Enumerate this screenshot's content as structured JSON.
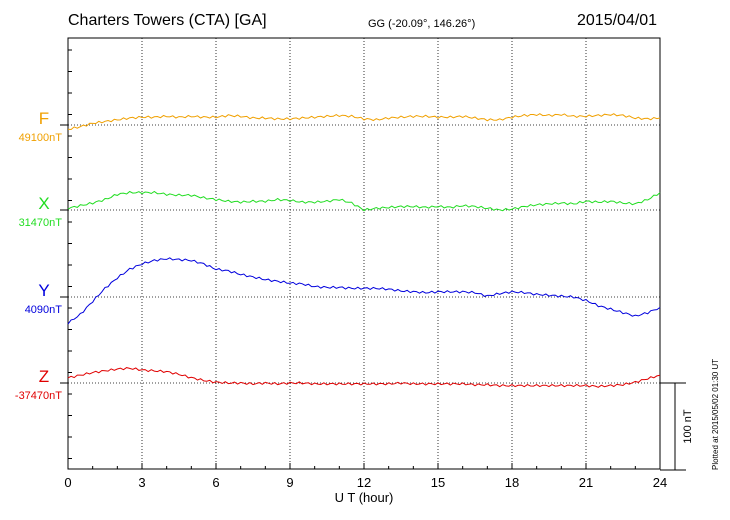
{
  "header": {
    "title": "Charters Towers (CTA)  [GA]",
    "coords": "GG (-20.09°, 146.26°)",
    "date": "2015/04/01"
  },
  "footer": {
    "plotted": "Plotted at 2015/05/02 01:30 UT"
  },
  "chart_data": {
    "type": "line",
    "xlabel": "U T (hour)",
    "xlim": [
      0,
      24
    ],
    "xticks": [
      "0",
      "3",
      "6",
      "9",
      "12",
      "15",
      "18",
      "21",
      "24"
    ],
    "scale_bar": {
      "label": "100 nT",
      "value_nT": 100
    },
    "series": [
      {
        "name": "F",
        "baseline_label": "49100nT",
        "color": "#f0a000",
        "x": [
          0,
          0.5,
          1,
          1.5,
          2,
          2.5,
          3,
          3.5,
          4,
          4.5,
          5,
          5.5,
          6,
          6.5,
          7,
          7.5,
          8,
          8.5,
          9,
          9.5,
          10,
          10.5,
          11,
          11.5,
          12,
          12.5,
          13,
          13.5,
          14,
          14.5,
          15,
          15.5,
          16,
          16.5,
          17,
          17.5,
          18,
          18.5,
          19,
          19.5,
          20,
          20.5,
          21,
          21.5,
          22,
          22.5,
          23,
          23.5,
          24
        ],
        "values": [
          -5,
          -2,
          2,
          4,
          6,
          8,
          9,
          9,
          10,
          9,
          10,
          9,
          9,
          11,
          10,
          8,
          8,
          7,
          7,
          8,
          9,
          10,
          11,
          10,
          7,
          6,
          8,
          9,
          10,
          10,
          9,
          9,
          10,
          8,
          6,
          6,
          9,
          11,
          12,
          11,
          12,
          10,
          10,
          11,
          12,
          11,
          8,
          7,
          8
        ]
      },
      {
        "name": "X",
        "baseline_label": "31470nT",
        "color": "#22dd22",
        "x": [
          0,
          0.5,
          1,
          1.5,
          2,
          2.5,
          3,
          3.5,
          4,
          4.5,
          5,
          5.5,
          6,
          6.5,
          7,
          7.5,
          8,
          8.5,
          9,
          9.5,
          10,
          10.5,
          11,
          11.5,
          12,
          12.5,
          13,
          13.5,
          14,
          14.5,
          15,
          15.5,
          16,
          16.5,
          17,
          17.5,
          18,
          18.5,
          19,
          19.5,
          20,
          20.5,
          21,
          21.5,
          22,
          22.5,
          23,
          23.5,
          24
        ],
        "values": [
          2,
          5,
          8,
          12,
          18,
          20,
          20,
          20,
          18,
          17,
          17,
          14,
          12,
          10,
          9,
          10,
          10,
          12,
          11,
          9,
          9,
          10,
          12,
          8,
          0,
          2,
          3,
          4,
          4,
          3,
          4,
          3,
          5,
          4,
          2,
          0,
          1,
          4,
          6,
          7,
          8,
          7,
          10,
          9,
          10,
          8,
          7,
          12,
          20
        ]
      },
      {
        "name": "Y",
        "baseline_label": "4090nT",
        "color": "#0000dd",
        "x": [
          0,
          0.5,
          1,
          1.5,
          2,
          2.5,
          3,
          3.5,
          4,
          4.5,
          5,
          5.5,
          6,
          6.5,
          7,
          7.5,
          8,
          8.5,
          9,
          9.5,
          10,
          10.5,
          11,
          11.5,
          12,
          12.5,
          13,
          13.5,
          14,
          14.5,
          15,
          15.5,
          16,
          16.5,
          17,
          17.5,
          18,
          18.5,
          19,
          19.5,
          20,
          20.5,
          21,
          21.5,
          22,
          22.5,
          23,
          23.5,
          24
        ],
        "values": [
          -30,
          -20,
          -5,
          10,
          22,
          32,
          38,
          42,
          44,
          43,
          42,
          38,
          32,
          30,
          26,
          23,
          20,
          18,
          16,
          15,
          12,
          11,
          11,
          10,
          10,
          10,
          9,
          7,
          6,
          5,
          6,
          6,
          6,
          5,
          1,
          4,
          6,
          5,
          3,
          2,
          1,
          0,
          -4,
          -10,
          -14,
          -18,
          -22,
          -18,
          -12
        ]
      },
      {
        "name": "Z",
        "baseline_label": "-37470nT",
        "color": "#e00000",
        "x": [
          0,
          0.5,
          1,
          1.5,
          2,
          2.5,
          3,
          3.5,
          4,
          4.5,
          5,
          5.5,
          6,
          6.5,
          7,
          7.5,
          8,
          8.5,
          9,
          9.5,
          10,
          10.5,
          11,
          11.5,
          12,
          12.5,
          13,
          13.5,
          14,
          14.5,
          15,
          15.5,
          16,
          16.5,
          17,
          17.5,
          18,
          18.5,
          19,
          19.5,
          20,
          20.5,
          21,
          21.5,
          22,
          22.5,
          23,
          23.5,
          24
        ],
        "values": [
          6,
          9,
          12,
          14,
          16,
          17,
          15,
          14,
          13,
          10,
          6,
          3,
          1,
          0,
          0,
          -1,
          0,
          -1,
          0,
          0,
          -1,
          -1,
          -1,
          -1,
          -1,
          -1,
          -1,
          0,
          -1,
          -1,
          -1,
          -1,
          -1,
          -2,
          -2,
          -3,
          -3,
          -3,
          -3,
          -3,
          -3,
          -3,
          -3,
          -4,
          -3,
          -2,
          1,
          5,
          9
        ]
      }
    ]
  }
}
